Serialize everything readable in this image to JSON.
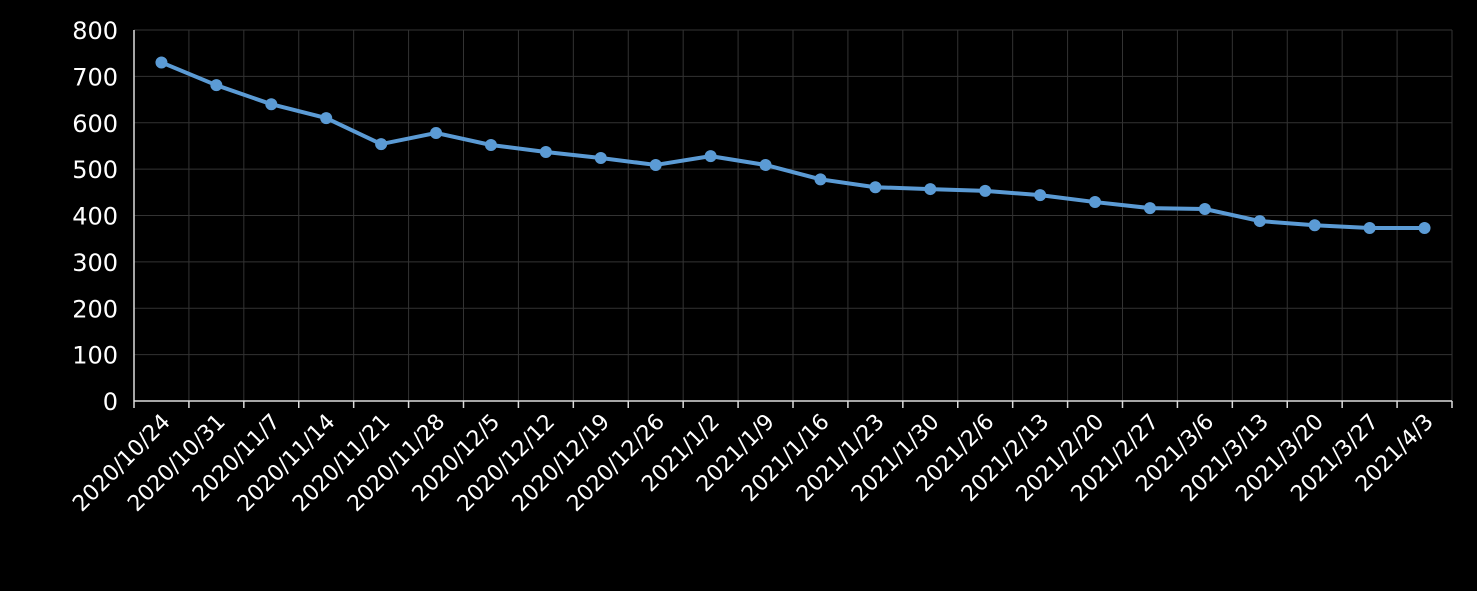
{
  "chart_data": {
    "type": "line",
    "categories": [
      "2020/10/24",
      "2020/10/31",
      "2020/11/7",
      "2020/11/14",
      "2020/11/21",
      "2020/11/28",
      "2020/12/5",
      "2020/12/12",
      "2020/12/19",
      "2020/12/26",
      "2021/1/2",
      "2021/1/9",
      "2021/1/16",
      "2021/1/23",
      "2021/1/30",
      "2021/2/6",
      "2021/2/13",
      "2021/2/20",
      "2021/2/27",
      "2021/3/6",
      "2021/3/13",
      "2021/3/20",
      "2021/3/27",
      "2021/4/3"
    ],
    "series": [
      {
        "color": "#5b9bd5",
        "values": [
          730,
          681,
          640,
          610,
          554,
          578,
          552,
          537,
          524,
          509,
          528,
          509,
          478,
          461,
          457,
          453,
          444,
          429,
          416,
          414,
          388,
          379,
          373,
          373
        ]
      }
    ],
    "ylim": [
      0,
      800
    ],
    "yticks": [
      0,
      100,
      200,
      300,
      400,
      500,
      600,
      700,
      800
    ],
    "grid": true
  }
}
